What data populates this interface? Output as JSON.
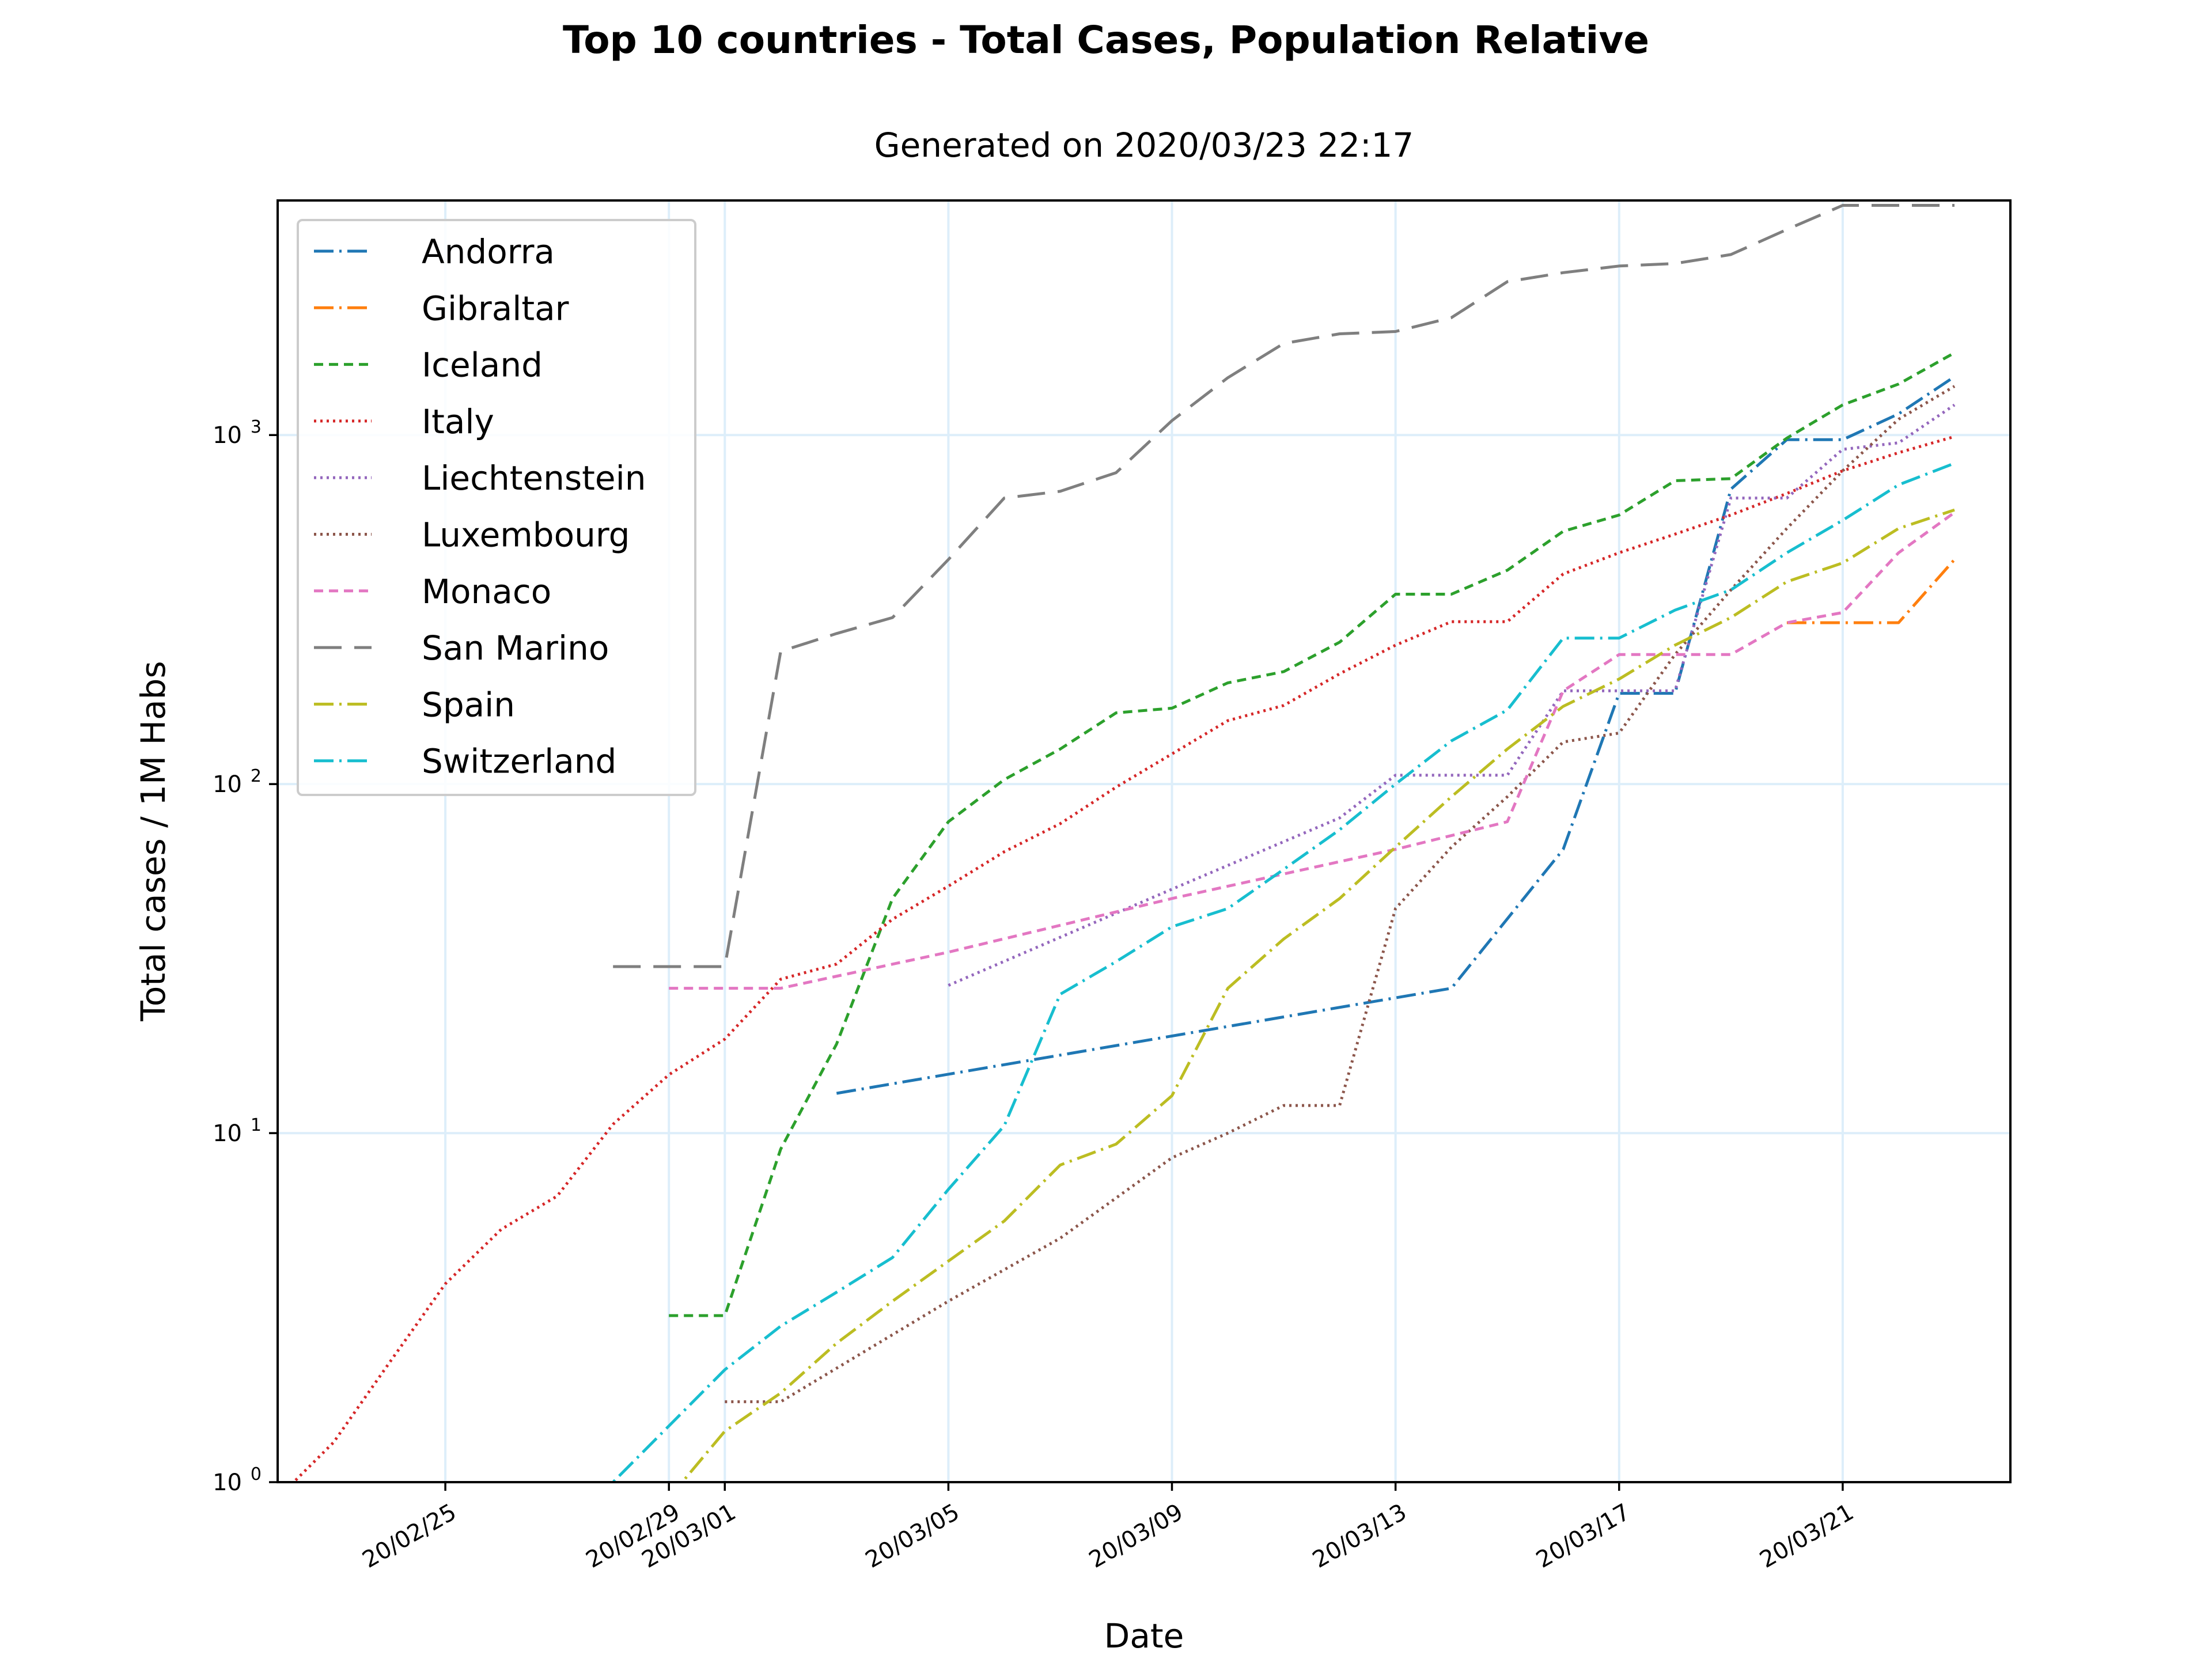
{
  "chart_data": {
    "type": "line",
    "title": "Top 10 countries - Total Cases, Population Relative",
    "subtitle": "Generated on 2020/03/23 22:17",
    "xlabel": "Date",
    "ylabel": "Total cases / 1M Habs",
    "yscale": "log",
    "ylim": [
      1,
      4700
    ],
    "xlim": [
      "2020-02-22",
      "2020-03-24"
    ],
    "x_ticks": [
      "2020-02-25",
      "2020-02-29",
      "2020-03-01",
      "2020-03-05",
      "2020-03-09",
      "2020-03-13",
      "2020-03-17",
      "2020-03-21"
    ],
    "x_tick_labels": [
      "20/02/25",
      "20/02/29",
      "20/03/01",
      "20/03/05",
      "20/03/09",
      "20/03/13",
      "20/03/17",
      "20/03/21"
    ],
    "y_ticks": [
      1,
      10,
      100,
      1000
    ],
    "y_tick_labels": [
      "10",
      "10",
      "10",
      "10"
    ],
    "y_tick_exponents": [
      "0",
      "1",
      "2",
      "3"
    ],
    "grid": true,
    "legend_position": "upper left",
    "series": [
      {
        "name": "Andorra",
        "color": "#1f77b4",
        "dash": "dashdot",
        "points": [
          [
            "2020-03-03",
            13
          ],
          [
            "2020-03-14",
            26
          ],
          [
            "2020-03-16",
            65
          ],
          [
            "2020-03-17",
            182
          ],
          [
            "2020-03-18",
            182
          ],
          [
            "2020-03-19",
            700
          ],
          [
            "2020-03-20",
            970
          ],
          [
            "2020-03-21",
            970
          ],
          [
            "2020-03-22",
            1150
          ],
          [
            "2020-03-23",
            1470
          ]
        ]
      },
      {
        "name": "Gibraltar",
        "color": "#ff7f0e",
        "dash": "dashdot",
        "points": [
          [
            "2020-03-20",
            290
          ],
          [
            "2020-03-21",
            290
          ],
          [
            "2020-03-22",
            290
          ],
          [
            "2020-03-23",
            440
          ]
        ]
      },
      {
        "name": "Iceland",
        "color": "#2ca02c",
        "dash": "dashed",
        "points": [
          [
            "2020-02-29",
            3
          ],
          [
            "2020-03-01",
            3
          ],
          [
            "2020-03-02",
            9
          ],
          [
            "2020-03-03",
            18
          ],
          [
            "2020-03-04",
            47
          ],
          [
            "2020-03-05",
            78
          ],
          [
            "2020-03-06",
            103
          ],
          [
            "2020-03-07",
            126
          ],
          [
            "2020-03-08",
            160
          ],
          [
            "2020-03-09",
            165
          ],
          [
            "2020-03-10",
            195
          ],
          [
            "2020-03-11",
            210
          ],
          [
            "2020-03-12",
            255
          ],
          [
            "2020-03-13",
            350
          ],
          [
            "2020-03-14",
            350
          ],
          [
            "2020-03-15",
            410
          ],
          [
            "2020-03-16",
            530
          ],
          [
            "2020-03-17",
            590
          ],
          [
            "2020-03-18",
            740
          ],
          [
            "2020-03-19",
            750
          ],
          [
            "2020-03-20",
            980
          ],
          [
            "2020-03-21",
            1220
          ],
          [
            "2020-03-22",
            1400
          ],
          [
            "2020-03-23",
            1720
          ]
        ]
      },
      {
        "name": "Italy",
        "color": "#d62728",
        "dash": "dotted",
        "points": [
          [
            "2020-02-22",
            0.9
          ],
          [
            "2020-02-23",
            1.3
          ],
          [
            "2020-02-24",
            2.2
          ],
          [
            "2020-02-25",
            3.7
          ],
          [
            "2020-02-26",
            5.3
          ],
          [
            "2020-02-27",
            6.6
          ],
          [
            "2020-02-28",
            10.6
          ],
          [
            "2020-02-29",
            14.7
          ],
          [
            "2020-03-01",
            18.6
          ],
          [
            "2020-03-02",
            27.6
          ],
          [
            "2020-03-03",
            30.5
          ],
          [
            "2020-03-04",
            41
          ],
          [
            "2020-03-05",
            51
          ],
          [
            "2020-03-06",
            64
          ],
          [
            "2020-03-07",
            77
          ],
          [
            "2020-03-08",
            98
          ],
          [
            "2020-03-09",
            122
          ],
          [
            "2020-03-10",
            152
          ],
          [
            "2020-03-11",
            168
          ],
          [
            "2020-03-12",
            207
          ],
          [
            "2020-03-13",
            250
          ],
          [
            "2020-03-14",
            292
          ],
          [
            "2020-03-15",
            292
          ],
          [
            "2020-03-16",
            400
          ],
          [
            "2020-03-17",
            460
          ],
          [
            "2020-03-18",
            520
          ],
          [
            "2020-03-19",
            590
          ],
          [
            "2020-03-20",
            680
          ],
          [
            "2020-03-21",
            790
          ],
          [
            "2020-03-22",
            890
          ],
          [
            "2020-03-23",
            990
          ]
        ]
      },
      {
        "name": "Liechtenstein",
        "color": "#9467bd",
        "dash": "dotted",
        "points": [
          [
            "2020-03-05",
            26.5
          ],
          [
            "2020-03-09",
            50
          ],
          [
            "2020-03-12",
            80
          ],
          [
            "2020-03-13",
            106
          ],
          [
            "2020-03-14",
            106
          ],
          [
            "2020-03-15",
            106
          ],
          [
            "2020-03-16",
            185
          ],
          [
            "2020-03-17",
            185
          ],
          [
            "2020-03-18",
            185
          ],
          [
            "2020-03-19",
            660
          ],
          [
            "2020-03-20",
            660
          ],
          [
            "2020-03-21",
            910
          ],
          [
            "2020-03-22",
            950
          ],
          [
            "2020-03-23",
            1220
          ]
        ]
      },
      {
        "name": "Luxembourg",
        "color": "#8c564b",
        "dash": "dotted",
        "points": [
          [
            "2020-03-01",
            1.7
          ],
          [
            "2020-03-02",
            1.7
          ],
          [
            "2020-03-05",
            3.3
          ],
          [
            "2020-03-07",
            5.0
          ],
          [
            "2020-03-09",
            8.5
          ],
          [
            "2020-03-10",
            10
          ],
          [
            "2020-03-11",
            12
          ],
          [
            "2020-03-12",
            12
          ],
          [
            "2020-03-13",
            44
          ],
          [
            "2020-03-14",
            66
          ],
          [
            "2020-03-15",
            92
          ],
          [
            "2020-03-16",
            132
          ],
          [
            "2020-03-17",
            140
          ],
          [
            "2020-03-18",
            235
          ],
          [
            "2020-03-19",
            360
          ],
          [
            "2020-03-20",
            540
          ],
          [
            "2020-03-21",
            790
          ],
          [
            "2020-03-22",
            1110
          ],
          [
            "2020-03-23",
            1380
          ]
        ]
      },
      {
        "name": "Monaco",
        "color": "#e377c2",
        "dash": "dashed",
        "points": [
          [
            "2020-02-29",
            26
          ],
          [
            "2020-03-02",
            26
          ],
          [
            "2020-03-05",
            33
          ],
          [
            "2020-03-09",
            47
          ],
          [
            "2020-03-13",
            65
          ],
          [
            "2020-03-15",
            78
          ],
          [
            "2020-03-16",
            185
          ],
          [
            "2020-03-17",
            235
          ],
          [
            "2020-03-18",
            235
          ],
          [
            "2020-03-19",
            235
          ],
          [
            "2020-03-20",
            290
          ],
          [
            "2020-03-21",
            310
          ],
          [
            "2020-03-22",
            460
          ],
          [
            "2020-03-23",
            600
          ]
        ]
      },
      {
        "name": "San Marino",
        "color": "#7f7f7f",
        "dash": "longdash",
        "points": [
          [
            "2020-02-28",
            30
          ],
          [
            "2020-02-29",
            30
          ],
          [
            "2020-03-01",
            30
          ],
          [
            "2020-03-02",
            240
          ],
          [
            "2020-03-03",
            270
          ],
          [
            "2020-03-04",
            300
          ],
          [
            "2020-03-05",
            440
          ],
          [
            "2020-03-06",
            660
          ],
          [
            "2020-03-07",
            690
          ],
          [
            "2020-03-08",
            780
          ],
          [
            "2020-03-09",
            1100
          ],
          [
            "2020-03-10",
            1460
          ],
          [
            "2020-03-11",
            1830
          ],
          [
            "2020-03-12",
            1950
          ],
          [
            "2020-03-13",
            1980
          ],
          [
            "2020-03-14",
            2170
          ],
          [
            "2020-03-15",
            2750
          ],
          [
            "2020-03-16",
            2920
          ],
          [
            "2020-03-17",
            3050
          ],
          [
            "2020-03-18",
            3100
          ],
          [
            "2020-03-19",
            3290
          ],
          [
            "2020-03-20",
            3880
          ],
          [
            "2020-03-21",
            4550
          ],
          [
            "2020-03-22",
            4550
          ],
          [
            "2020-03-23",
            4550
          ]
        ]
      },
      {
        "name": "Spain",
        "color": "#bcbd22",
        "dash": "dashdot",
        "points": [
          [
            "2020-02-29",
            0.9
          ],
          [
            "2020-03-01",
            1.4
          ],
          [
            "2020-03-02",
            1.8
          ],
          [
            "2020-03-03",
            2.5
          ],
          [
            "2020-03-04",
            3.3
          ],
          [
            "2020-03-05",
            4.3
          ],
          [
            "2020-03-06",
            5.6
          ],
          [
            "2020-03-07",
            8.1
          ],
          [
            "2020-03-08",
            9.3
          ],
          [
            "2020-03-09",
            12.8
          ],
          [
            "2020-03-10",
            26
          ],
          [
            "2020-03-11",
            36
          ],
          [
            "2020-03-12",
            47
          ],
          [
            "2020-03-13",
            66
          ],
          [
            "2020-03-14",
            92
          ],
          [
            "2020-03-15",
            126
          ],
          [
            "2020-03-16",
            167
          ],
          [
            "2020-03-17",
            200
          ],
          [
            "2020-03-18",
            250
          ],
          [
            "2020-03-19",
            300
          ],
          [
            "2020-03-20",
            380
          ],
          [
            "2020-03-21",
            430
          ],
          [
            "2020-03-22",
            540
          ],
          [
            "2020-03-23",
            610
          ]
        ]
      },
      {
        "name": "Switzerland",
        "color": "#17becf",
        "dash": "dashdot",
        "points": [
          [
            "2020-02-27",
            0.9
          ],
          [
            "2020-02-28",
            1.0
          ],
          [
            "2020-03-01",
            2.1
          ],
          [
            "2020-03-02",
            2.8
          ],
          [
            "2020-03-03",
            3.5
          ],
          [
            "2020-03-04",
            4.4
          ],
          [
            "2020-03-05",
            6.9
          ],
          [
            "2020-03-06",
            10.5
          ],
          [
            "2020-03-07",
            25
          ],
          [
            "2020-03-08",
            31
          ],
          [
            "2020-03-09",
            39
          ],
          [
            "2020-03-10",
            44
          ],
          [
            "2020-03-11",
            57
          ],
          [
            "2020-03-12",
            74
          ],
          [
            "2020-03-13",
            100
          ],
          [
            "2020-03-14",
            133
          ],
          [
            "2020-03-15",
            163
          ],
          [
            "2020-03-16",
            262
          ],
          [
            "2020-03-17",
            262
          ],
          [
            "2020-03-18",
            315
          ],
          [
            "2020-03-19",
            360
          ],
          [
            "2020-03-20",
            460
          ],
          [
            "2020-03-21",
            570
          ],
          [
            "2020-03-22",
            720
          ],
          [
            "2020-03-23",
            830
          ]
        ]
      }
    ]
  }
}
